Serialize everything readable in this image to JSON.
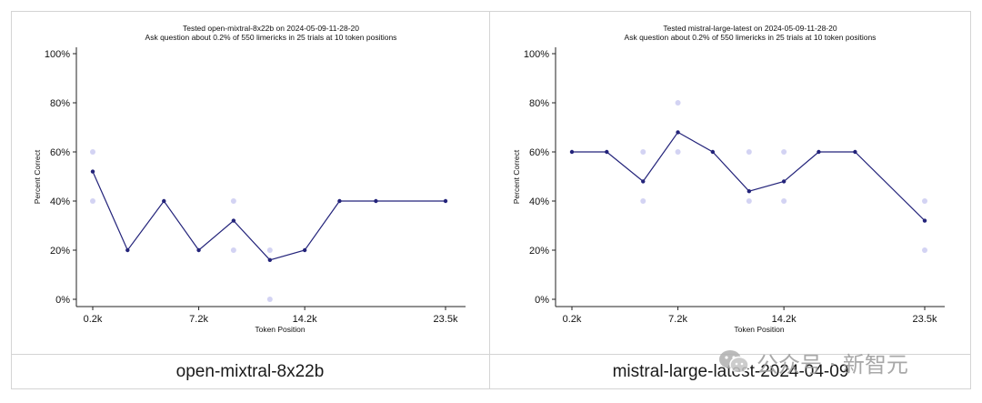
{
  "charts": [
    {
      "caption": "open-mixtral-8x22b",
      "chart_data": {
        "type": "line",
        "title": "Tested open-mixtral-8x22b on 2024-05-09-11-28-20",
        "subtitle": "Ask question about 0.2% of 550 limericks in 25 trials at 10 token positions",
        "xlabel": "Token Position",
        "ylabel": "Percent Correct",
        "xlim": [
          0.2,
          23.5
        ],
        "ylim": [
          0,
          100
        ],
        "x_ticks": [
          {
            "value": 0.2,
            "label": "0.2k"
          },
          {
            "value": 7.2,
            "label": "7.2k"
          },
          {
            "value": 14.2,
            "label": "14.2k"
          },
          {
            "value": 23.5,
            "label": "23.5k"
          }
        ],
        "y_ticks": [
          {
            "value": 0,
            "label": "0%"
          },
          {
            "value": 20,
            "label": "20%"
          },
          {
            "value": 40,
            "label": "40%"
          },
          {
            "value": 60,
            "label": "60%"
          },
          {
            "value": 80,
            "label": "80%"
          },
          {
            "value": 100,
            "label": "100%"
          }
        ],
        "line_color": "#23237a",
        "trial_color": "#c8c8f0",
        "series": [
          {
            "x": [
              0.2,
              2.5,
              4.9,
              7.2,
              9.5,
              11.9,
              14.2,
              16.5,
              18.9,
              23.5
            ],
            "values": [
              52,
              20,
              40,
              20,
              32,
              16,
              20,
              40,
              40,
              40
            ]
          }
        ],
        "trials": [
          {
            "x": 0.2,
            "y": 60
          },
          {
            "x": 0.2,
            "y": 40
          },
          {
            "x": 9.5,
            "y": 40
          },
          {
            "x": 9.5,
            "y": 20
          },
          {
            "x": 11.9,
            "y": 20
          },
          {
            "x": 11.9,
            "y": 0
          }
        ],
        "grid": false
      }
    },
    {
      "caption": "mistral-large-latest-2024-04-09",
      "chart_data": {
        "type": "line",
        "title": "Tested mistral-large-latest on 2024-05-09-11-28-20",
        "subtitle": "Ask question about 0.2% of 550 limericks in 25 trials at 10 token positions",
        "xlabel": "Token Position",
        "ylabel": "Percent Correct",
        "xlim": [
          0.2,
          23.5
        ],
        "ylim": [
          0,
          100
        ],
        "x_ticks": [
          {
            "value": 0.2,
            "label": "0.2k"
          },
          {
            "value": 7.2,
            "label": "7.2k"
          },
          {
            "value": 14.2,
            "label": "14.2k"
          },
          {
            "value": 23.5,
            "label": "23.5k"
          }
        ],
        "y_ticks": [
          {
            "value": 0,
            "label": "0%"
          },
          {
            "value": 20,
            "label": "20%"
          },
          {
            "value": 40,
            "label": "40%"
          },
          {
            "value": 60,
            "label": "60%"
          },
          {
            "value": 80,
            "label": "80%"
          },
          {
            "value": 100,
            "label": "100%"
          }
        ],
        "line_color": "#23237a",
        "trial_color": "#c8c8f0",
        "series": [
          {
            "x": [
              0.2,
              2.5,
              4.9,
              7.2,
              9.5,
              11.9,
              14.2,
              16.5,
              18.9,
              23.5
            ],
            "values": [
              60,
              60,
              48,
              68,
              60,
              44,
              48,
              60,
              60,
              32
            ]
          }
        ],
        "trials": [
          {
            "x": 4.9,
            "y": 60
          },
          {
            "x": 4.9,
            "y": 40
          },
          {
            "x": 7.2,
            "y": 80
          },
          {
            "x": 7.2,
            "y": 60
          },
          {
            "x": 11.9,
            "y": 60
          },
          {
            "x": 11.9,
            "y": 40
          },
          {
            "x": 14.2,
            "y": 60
          },
          {
            "x": 14.2,
            "y": 40
          },
          {
            "x": 23.5,
            "y": 40
          },
          {
            "x": 23.5,
            "y": 20
          }
        ],
        "grid": false
      }
    }
  ],
  "watermark": {
    "text": "公众号 · 新智元",
    "icon": "wechat-icon"
  }
}
